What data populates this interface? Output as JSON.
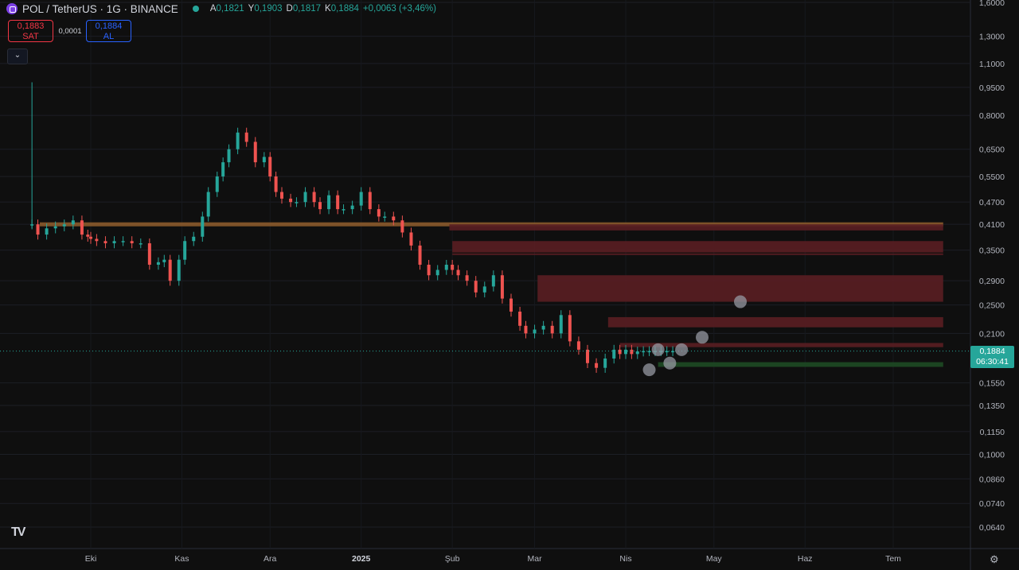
{
  "header": {
    "symbol_title": "POL / TetherUS · 1G · BINANCE",
    "ohlc": [
      {
        "k": "A",
        "v": "0,1821"
      },
      {
        "k": "Y",
        "v": "0,1903"
      },
      {
        "k": "D",
        "v": "0,1817"
      },
      {
        "k": "K",
        "v": "0,1884"
      },
      {
        "k": "",
        "v": "+0,0063 (+3,46%)"
      }
    ]
  },
  "trade": {
    "sell_price": "0,1883",
    "sell_label": "SAT",
    "spread": "0,0001",
    "buy_price": "0,1884",
    "buy_label": "AL"
  },
  "collapse_icon": "chevron-down-icon",
  "logo_text": "TV",
  "current_price": {
    "price": "0,1884",
    "countdown": "06:30:41"
  },
  "colors": {
    "up": "#26a69a",
    "down": "#ef5350",
    "zone_red": "#5a1e22",
    "zone_orange": "#8a5a2b",
    "zone_green": "#1e4a24",
    "bg": "#0f0f0f"
  },
  "chart_data": {
    "type": "candlestick",
    "scale": "log",
    "price_ticks": [
      "1,6000",
      "1,3000",
      "1,1000",
      "0,9500",
      "0,8000",
      "0,6500",
      "0,5500",
      "0,4700",
      "0,4100",
      "0,3500",
      "0,2900",
      "0,2500",
      "0,2100",
      "0,1884",
      "0,1550",
      "0,1350",
      "0,1150",
      "0,1000",
      "0,0860",
      "0,0740",
      "0,0640"
    ],
    "price_tick_values": [
      1.6,
      1.3,
      1.1,
      0.95,
      0.8,
      0.65,
      0.55,
      0.47,
      0.41,
      0.35,
      0.29,
      0.25,
      0.21,
      0.1884,
      0.155,
      0.135,
      0.115,
      0.1,
      0.086,
      0.074,
      0.064
    ],
    "time_ticks": [
      "Eki",
      "Kas",
      "Ara",
      "2025",
      "Şub",
      "Mar",
      "Nis",
      "May",
      "Haz",
      "Tem"
    ],
    "time_tick_days": [
      0,
      31,
      61,
      92,
      123,
      151,
      182,
      212,
      243,
      273
    ],
    "first_day": -20,
    "last_day": 290,
    "close_series_days": [
      -20,
      -18,
      -15,
      -12,
      -9,
      -6,
      -3,
      -1,
      0,
      2,
      5,
      8,
      11,
      14,
      17,
      20,
      23,
      25,
      27,
      30,
      32,
      35,
      38,
      40,
      43,
      45,
      47,
      50,
      53,
      56,
      59,
      61,
      63,
      65,
      68,
      70,
      73,
      76,
      78,
      81,
      84,
      86,
      89,
      92,
      95,
      98,
      100,
      103,
      106,
      109,
      112,
      115,
      118,
      121,
      123,
      125,
      128,
      131,
      134,
      137,
      140,
      143,
      146,
      148,
      151,
      154,
      157,
      160,
      163,
      166,
      169,
      172,
      175,
      178,
      180,
      182,
      184,
      186,
      188,
      190,
      192,
      194,
      196,
      198
    ],
    "close_series_values": [
      0.41,
      0.385,
      0.4,
      0.405,
      0.41,
      0.42,
      0.385,
      0.38,
      0.375,
      0.37,
      0.365,
      0.37,
      0.37,
      0.365,
      0.365,
      0.32,
      0.325,
      0.33,
      0.29,
      0.33,
      0.37,
      0.38,
      0.43,
      0.5,
      0.55,
      0.6,
      0.65,
      0.72,
      0.68,
      0.6,
      0.62,
      0.55,
      0.5,
      0.48,
      0.47,
      0.47,
      0.5,
      0.47,
      0.45,
      0.49,
      0.45,
      0.45,
      0.46,
      0.5,
      0.45,
      0.43,
      0.43,
      0.42,
      0.39,
      0.36,
      0.32,
      0.3,
      0.31,
      0.32,
      0.31,
      0.3,
      0.29,
      0.27,
      0.28,
      0.3,
      0.26,
      0.24,
      0.22,
      0.21,
      0.215,
      0.22,
      0.21,
      0.235,
      0.2,
      0.19,
      0.175,
      0.17,
      0.18,
      0.19,
      0.185,
      0.19,
      0.185,
      0.188,
      0.1884,
      0.1884,
      0.1884,
      0.1884,
      0.1884,
      0.1884
    ],
    "zones": [
      {
        "color": "orange",
        "from_day": -20,
        "to_day": 290,
        "low": 0.405,
        "high": 0.415
      },
      {
        "color": "red",
        "from_day": 122,
        "to_day": 290,
        "low": 0.395,
        "high": 0.41
      },
      {
        "color": "red",
        "from_day": 123,
        "to_day": 290,
        "low": 0.345,
        "high": 0.37
      },
      {
        "color": "red",
        "from_day": 123,
        "to_day": 290,
        "low": 0.34,
        "high": 0.343
      },
      {
        "color": "red",
        "from_day": 152,
        "to_day": 290,
        "low": 0.255,
        "high": 0.3
      },
      {
        "color": "red",
        "from_day": 176,
        "to_day": 290,
        "low": 0.218,
        "high": 0.232
      },
      {
        "color": "red",
        "from_day": 180,
        "to_day": 290,
        "low": 0.193,
        "high": 0.198
      },
      {
        "color": "green",
        "from_day": 193,
        "to_day": 290,
        "low": 0.171,
        "high": 0.176
      }
    ],
    "markers": [
      {
        "day": 190,
        "price": 0.168
      },
      {
        "day": 193,
        "price": 0.19
      },
      {
        "day": 197,
        "price": 0.175
      },
      {
        "day": 201,
        "price": 0.19
      },
      {
        "day": 208,
        "price": 0.205
      },
      {
        "day": 221,
        "price": 0.255
      }
    ]
  }
}
